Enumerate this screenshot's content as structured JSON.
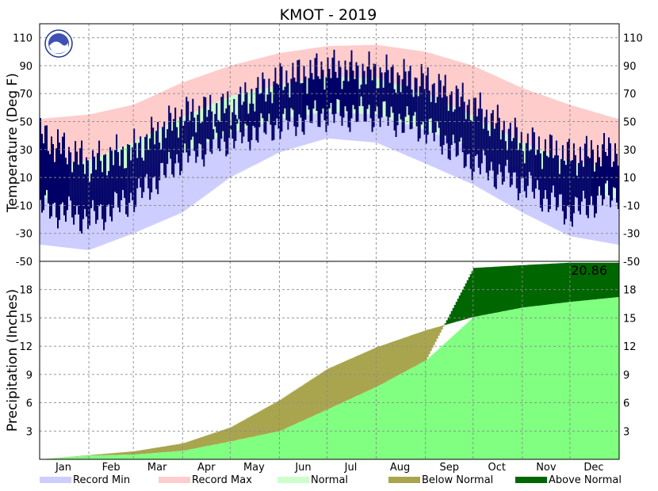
{
  "chart_data": {
    "title": "KMOT - 2019",
    "colors": {
      "record_min": "#cdcdff",
      "record_max": "#ffcccc",
      "normal": "#ccffcc",
      "observed": "#000066",
      "below_normal": "#a9a54f",
      "above_normal": "#006600",
      "precip_normal": "#80ff80"
    },
    "months": [
      "Jan",
      "Feb",
      "Mar",
      "Apr",
      "May",
      "Jun",
      "Jul",
      "Aug",
      "Sep",
      "Oct",
      "Nov",
      "Dec"
    ],
    "legend": [
      {
        "key": "record_min",
        "label": "Record Min"
      },
      {
        "key": "record_max",
        "label": "Record Max"
      },
      {
        "key": "normal",
        "label": "Normal"
      },
      {
        "key": "below_normal",
        "label": "Below Normal"
      },
      {
        "key": "above_normal",
        "label": "Above Normal"
      }
    ],
    "temperature": {
      "type": "bar",
      "ylabel": "Temperature (Deg F)",
      "ylim": [
        -50,
        120
      ],
      "yticks": [
        -50,
        -30,
        -10,
        10,
        30,
        50,
        70,
        90,
        110
      ],
      "doy": [
        1,
        32,
        60,
        91,
        121,
        152,
        182,
        213,
        244,
        274,
        305,
        335,
        365
      ],
      "record_max": [
        52,
        55,
        62,
        78,
        90,
        99,
        104,
        105,
        100,
        90,
        74,
        62,
        52
      ],
      "record_min": [
        -38,
        -42,
        -30,
        -15,
        10,
        28,
        38,
        35,
        20,
        5,
        -15,
        -32,
        -38
      ],
      "normal_high": [
        17,
        22,
        35,
        53,
        68,
        76,
        82,
        81,
        70,
        54,
        35,
        21,
        17
      ],
      "normal_low": [
        -5,
        -1,
        12,
        28,
        42,
        52,
        57,
        55,
        44,
        31,
        16,
        2,
        -5
      ],
      "observed_high": [
        40,
        20,
        30,
        55,
        60,
        80,
        88,
        85,
        78,
        60,
        35,
        25,
        30
      ],
      "observed_low": [
        -10,
        -20,
        -5,
        25,
        38,
        48,
        55,
        55,
        45,
        20,
        5,
        -15,
        0
      ]
    },
    "precipitation": {
      "type": "area",
      "ylabel": "Precipitation (Inches)",
      "ylim": [
        0,
        21
      ],
      "yticks": [
        3,
        6,
        9,
        12,
        15,
        18
      ],
      "annual_total": "20.86",
      "doy": [
        1,
        32,
        60,
        91,
        121,
        152,
        182,
        213,
        244,
        274,
        305,
        335,
        365
      ],
      "normal_cumulative": [
        0,
        0.45,
        0.85,
        1.7,
        3.4,
        6.3,
        9.6,
        11.9,
        13.7,
        15.1,
        16.1,
        16.7,
        17.2
      ],
      "observed_cumulative": [
        0,
        0.4,
        0.5,
        0.9,
        1.9,
        3.0,
        5.3,
        7.7,
        10.5,
        20.3,
        20.6,
        20.86,
        20.86
      ]
    }
  }
}
